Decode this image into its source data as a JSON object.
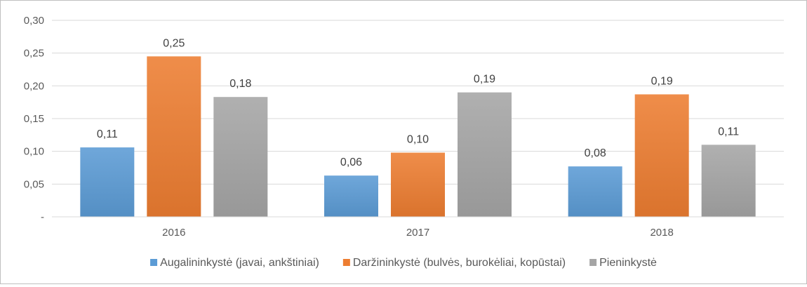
{
  "chart_data": {
    "type": "bar",
    "title": "",
    "xlabel": "",
    "ylabel": "",
    "categories": [
      "2016",
      "2017",
      "2018"
    ],
    "ylim": [
      0,
      0.3
    ],
    "yticks": [
      0,
      0.05,
      0.1,
      0.15,
      0.2,
      0.25,
      0.3
    ],
    "ytick_labels": [
      "-",
      "0,05",
      "0,10",
      "0,15",
      "0,20",
      "0,25",
      "0,30"
    ],
    "grid": true,
    "legend_position": "bottom",
    "series": [
      {
        "name": "Augalininkystė (javai, ankštiniai)",
        "values": [
          0.106,
          0.063,
          0.077
        ],
        "labels": [
          "0,11",
          "0,06",
          "0,08"
        ],
        "color": "#5b9bd5"
      },
      {
        "name": "Daržininkystė (bulvės, burokėliai, kopūstai)",
        "values": [
          0.245,
          0.098,
          0.187
        ],
        "labels": [
          "0,25",
          "0,10",
          "0,19"
        ],
        "color": "#ed7d31"
      },
      {
        "name": "Pieninkystė",
        "values": [
          0.183,
          0.19,
          0.11
        ],
        "labels": [
          "0,18",
          "0,19",
          "0,11"
        ],
        "color": "#a5a5a5"
      }
    ]
  }
}
